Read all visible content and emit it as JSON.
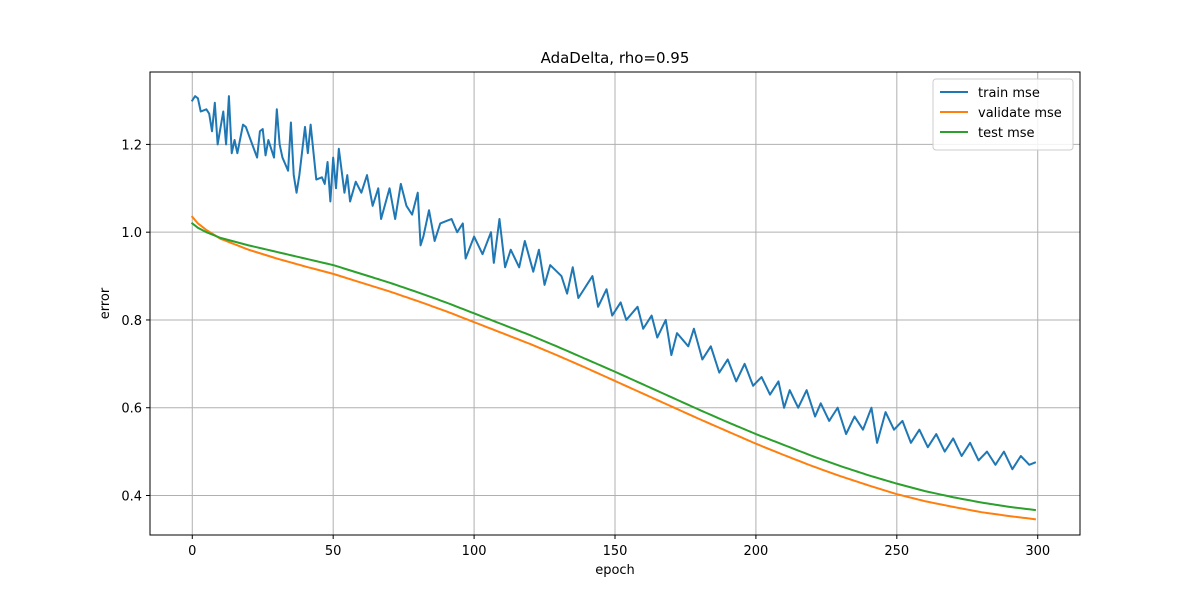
{
  "chart_data": {
    "type": "line",
    "title": "AdaDelta, rho=0.95",
    "xlabel": "epoch",
    "ylabel": "error",
    "xlim": [
      -15,
      315
    ],
    "ylim": [
      0.31,
      1.365
    ],
    "xticks": [
      0,
      50,
      100,
      150,
      200,
      250,
      300
    ],
    "yticks": [
      0.4,
      0.6,
      0.8,
      1.0,
      1.2
    ],
    "ytick_labels": [
      "0.4",
      "0.6",
      "0.8",
      "1.0",
      "1.2"
    ],
    "grid": true,
    "legend_position": "top-right",
    "series": [
      {
        "name": "train mse",
        "color": "#1f77b4",
        "anchors": [
          [
            0,
            1.3
          ],
          [
            1,
            1.31
          ],
          [
            2,
            1.305
          ],
          [
            3,
            1.275
          ],
          [
            5,
            1.28
          ],
          [
            6,
            1.27
          ],
          [
            7,
            1.23
          ],
          [
            8,
            1.295
          ],
          [
            9,
            1.2
          ],
          [
            11,
            1.275
          ],
          [
            12,
            1.2
          ],
          [
            13,
            1.31
          ],
          [
            14,
            1.18
          ],
          [
            15,
            1.21
          ],
          [
            16,
            1.18
          ],
          [
            18,
            1.245
          ],
          [
            19,
            1.24
          ],
          [
            23,
            1.17
          ],
          [
            24,
            1.23
          ],
          [
            25,
            1.235
          ],
          [
            26,
            1.175
          ],
          [
            27,
            1.21
          ],
          [
            29,
            1.17
          ],
          [
            30,
            1.28
          ],
          [
            31,
            1.2
          ],
          [
            32,
            1.17
          ],
          [
            34,
            1.14
          ],
          [
            35,
            1.25
          ],
          [
            36,
            1.13
          ],
          [
            37,
            1.09
          ],
          [
            38,
            1.13
          ],
          [
            40,
            1.24
          ],
          [
            41,
            1.18
          ],
          [
            42,
            1.245
          ],
          [
            44,
            1.12
          ],
          [
            46,
            1.125
          ],
          [
            47,
            1.11
          ],
          [
            48,
            1.16
          ],
          [
            49,
            1.07
          ],
          [
            50,
            1.17
          ],
          [
            51,
            1.1
          ],
          [
            52,
            1.19
          ],
          [
            54,
            1.09
          ],
          [
            55,
            1.13
          ],
          [
            56,
            1.07
          ],
          [
            58,
            1.115
          ],
          [
            60,
            1.09
          ],
          [
            62,
            1.13
          ],
          [
            64,
            1.06
          ],
          [
            66,
            1.1
          ],
          [
            67,
            1.03
          ],
          [
            70,
            1.1
          ],
          [
            72,
            1.03
          ],
          [
            74,
            1.11
          ],
          [
            76,
            1.06
          ],
          [
            78,
            1.04
          ],
          [
            80,
            1.09
          ],
          [
            81,
            0.97
          ],
          [
            82,
            0.99
          ],
          [
            84,
            1.05
          ],
          [
            86,
            0.98
          ],
          [
            88,
            1.02
          ],
          [
            92,
            1.03
          ],
          [
            94,
            1.0
          ],
          [
            96,
            1.02
          ],
          [
            97,
            0.94
          ],
          [
            100,
            0.99
          ],
          [
            103,
            0.95
          ],
          [
            106,
            1.0
          ],
          [
            107,
            0.93
          ],
          [
            109,
            1.03
          ],
          [
            111,
            0.92
          ],
          [
            113,
            0.96
          ],
          [
            116,
            0.92
          ],
          [
            118,
            0.98
          ],
          [
            121,
            0.91
          ],
          [
            123,
            0.96
          ],
          [
            125,
            0.88
          ],
          [
            127,
            0.925
          ],
          [
            131,
            0.9
          ],
          [
            133,
            0.86
          ],
          [
            135,
            0.92
          ],
          [
            137,
            0.85
          ],
          [
            139,
            0.87
          ],
          [
            142,
            0.9
          ],
          [
            144,
            0.83
          ],
          [
            147,
            0.87
          ],
          [
            149,
            0.81
          ],
          [
            152,
            0.84
          ],
          [
            154,
            0.8
          ],
          [
            158,
            0.83
          ],
          [
            160,
            0.78
          ],
          [
            163,
            0.81
          ],
          [
            165,
            0.76
          ],
          [
            168,
            0.8
          ],
          [
            170,
            0.72
          ],
          [
            172,
            0.77
          ],
          [
            176,
            0.74
          ],
          [
            178,
            0.78
          ],
          [
            181,
            0.71
          ],
          [
            184,
            0.74
          ],
          [
            187,
            0.68
          ],
          [
            190,
            0.71
          ],
          [
            193,
            0.66
          ],
          [
            196,
            0.7
          ],
          [
            199,
            0.65
          ],
          [
            202,
            0.67
          ],
          [
            205,
            0.63
          ],
          [
            208,
            0.66
          ],
          [
            210,
            0.6
          ],
          [
            212,
            0.64
          ],
          [
            215,
            0.6
          ],
          [
            218,
            0.64
          ],
          [
            221,
            0.58
          ],
          [
            223,
            0.61
          ],
          [
            226,
            0.57
          ],
          [
            229,
            0.6
          ],
          [
            232,
            0.54
          ],
          [
            235,
            0.58
          ],
          [
            238,
            0.55
          ],
          [
            241,
            0.6
          ],
          [
            243,
            0.52
          ],
          [
            246,
            0.59
          ],
          [
            249,
            0.55
          ],
          [
            252,
            0.57
          ],
          [
            255,
            0.52
          ],
          [
            258,
            0.55
          ],
          [
            261,
            0.51
          ],
          [
            264,
            0.54
          ],
          [
            267,
            0.5
          ],
          [
            270,
            0.53
          ],
          [
            273,
            0.49
          ],
          [
            276,
            0.52
          ],
          [
            279,
            0.48
          ],
          [
            282,
            0.5
          ],
          [
            285,
            0.47
          ],
          [
            288,
            0.5
          ],
          [
            291,
            0.46
          ],
          [
            294,
            0.49
          ],
          [
            297,
            0.47
          ],
          [
            299,
            0.475
          ]
        ]
      },
      {
        "name": "validate mse",
        "color": "#ff7f0e",
        "anchors": [
          [
            0,
            1.035
          ],
          [
            2,
            1.02
          ],
          [
            5,
            1.005
          ],
          [
            10,
            0.985
          ],
          [
            20,
            0.96
          ],
          [
            30,
            0.94
          ],
          [
            40,
            0.922
          ],
          [
            50,
            0.905
          ],
          [
            60,
            0.885
          ],
          [
            70,
            0.865
          ],
          [
            80,
            0.843
          ],
          [
            90,
            0.82
          ],
          [
            100,
            0.795
          ],
          [
            110,
            0.77
          ],
          [
            120,
            0.745
          ],
          [
            130,
            0.718
          ],
          [
            140,
            0.69
          ],
          [
            150,
            0.661
          ],
          [
            160,
            0.632
          ],
          [
            170,
            0.603
          ],
          [
            180,
            0.574
          ],
          [
            190,
            0.546
          ],
          [
            200,
            0.518
          ],
          [
            210,
            0.492
          ],
          [
            220,
            0.467
          ],
          [
            230,
            0.444
          ],
          [
            240,
            0.423
          ],
          [
            250,
            0.403
          ],
          [
            260,
            0.387
          ],
          [
            270,
            0.374
          ],
          [
            280,
            0.362
          ],
          [
            290,
            0.353
          ],
          [
            299,
            0.346
          ]
        ]
      },
      {
        "name": "test mse",
        "color": "#2ca02c",
        "anchors": [
          [
            0,
            1.02
          ],
          [
            2,
            1.01
          ],
          [
            5,
            1.0
          ],
          [
            10,
            0.987
          ],
          [
            20,
            0.97
          ],
          [
            30,
            0.955
          ],
          [
            40,
            0.94
          ],
          [
            50,
            0.925
          ],
          [
            60,
            0.905
          ],
          [
            70,
            0.885
          ],
          [
            80,
            0.863
          ],
          [
            90,
            0.84
          ],
          [
            100,
            0.815
          ],
          [
            110,
            0.79
          ],
          [
            120,
            0.765
          ],
          [
            130,
            0.738
          ],
          [
            140,
            0.71
          ],
          [
            150,
            0.682
          ],
          [
            160,
            0.653
          ],
          [
            170,
            0.624
          ],
          [
            180,
            0.595
          ],
          [
            190,
            0.567
          ],
          [
            200,
            0.54
          ],
          [
            210,
            0.515
          ],
          [
            220,
            0.49
          ],
          [
            230,
            0.467
          ],
          [
            240,
            0.446
          ],
          [
            250,
            0.427
          ],
          [
            260,
            0.41
          ],
          [
            270,
            0.396
          ],
          [
            280,
            0.384
          ],
          [
            290,
            0.374
          ],
          [
            299,
            0.367
          ]
        ]
      }
    ]
  }
}
